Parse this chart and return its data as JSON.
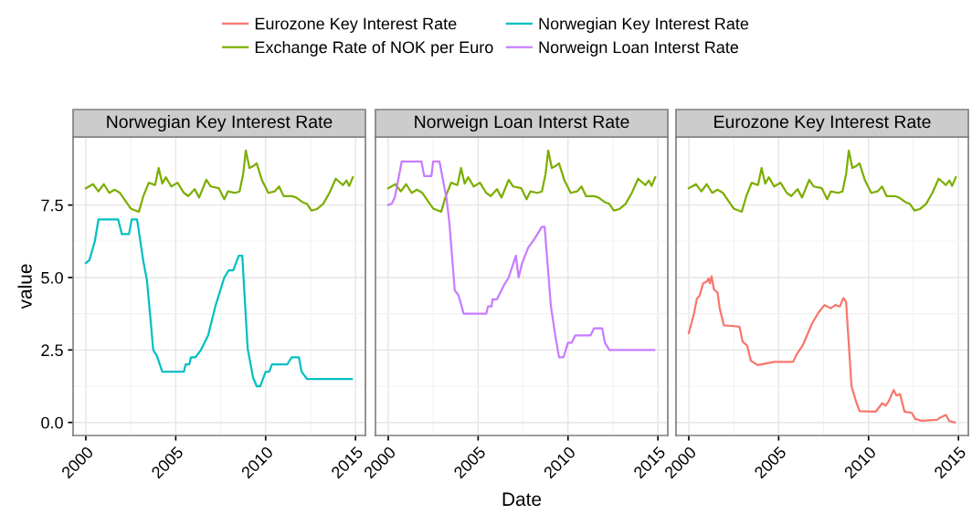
{
  "chart_data": [
    {
      "type": "line",
      "title": "Norwegian Key Interest Rate",
      "ylabel": "value",
      "legend": "top",
      "grid": true,
      "xlim": [
        1999.29,
        2015.55
      ],
      "ylim": [
        -0.45,
        9.85
      ],
      "xticks": [
        2000,
        2005,
        2010,
        2015
      ],
      "yticks": [
        {
          "value": 0,
          "label": "0.0"
        },
        2.5,
        {
          "value": 5,
          "label": "5.0"
        },
        7.5
      ],
      "series": [
        {
          "name": "Exchange Rate of NOK per Euro",
          "color": "#7cae00",
          "x": [
            2000.0,
            2000.4,
            2000.7,
            2001.0,
            2001.3,
            2001.6,
            2001.9,
            2002.25,
            2002.5,
            2002.95,
            2003.2,
            2003.5,
            2003.85,
            2004.05,
            2004.25,
            2004.45,
            2004.75,
            2005.1,
            2005.45,
            2005.7,
            2006.05,
            2006.3,
            2006.7,
            2006.95,
            2007.4,
            2007.7,
            2007.9,
            2008.3,
            2008.55,
            2008.75,
            2008.9,
            2009.1,
            2009.3,
            2009.5,
            2009.8,
            2010.15,
            2010.5,
            2010.75,
            2011.0,
            2011.45,
            2011.7,
            2012.05,
            2012.3,
            2012.55,
            2012.85,
            2013.2,
            2013.55,
            2013.9,
            2014.3,
            2014.5,
            2014.65,
            2014.85
          ],
          "values": [
            8.08,
            8.22,
            7.97,
            8.22,
            7.92,
            8.03,
            7.92,
            7.6,
            7.38,
            7.27,
            7.81,
            8.27,
            8.19,
            8.78,
            8.24,
            8.46,
            8.14,
            8.27,
            7.92,
            7.81,
            8.05,
            7.76,
            8.37,
            8.14,
            8.08,
            7.7,
            7.97,
            7.92,
            7.97,
            8.57,
            9.38,
            8.78,
            8.84,
            8.94,
            8.35,
            7.92,
            7.97,
            8.14,
            7.81,
            7.81,
            7.76,
            7.6,
            7.54,
            7.31,
            7.36,
            7.54,
            7.92,
            8.41,
            8.19,
            8.35,
            8.16,
            8.46
          ]
        },
        {
          "name": "Norwegian Key Interest Rate",
          "color": "#00bfc4",
          "x": [
            2000.0,
            2000.2,
            2000.5,
            2000.7,
            2001.8,
            2002.0,
            2002.4,
            2002.55,
            2002.85,
            2003.2,
            2003.4,
            2003.75,
            2003.95,
            2004.25,
            2005.45,
            2005.55,
            2005.75,
            2005.85,
            2006.1,
            2006.4,
            2006.6,
            2006.8,
            2007.2,
            2007.7,
            2007.95,
            2008.2,
            2008.5,
            2008.7,
            2009.0,
            2009.3,
            2009.5,
            2009.7,
            2010.0,
            2010.2,
            2010.35,
            2011.2,
            2011.45,
            2011.85,
            2012.0,
            2012.3,
            2014.8
          ],
          "values": [
            5.5,
            5.6,
            6.25,
            7.0,
            7.0,
            6.5,
            6.5,
            7.0,
            7.0,
            5.55,
            4.9,
            2.5,
            2.3,
            1.75,
            1.75,
            2.0,
            2.0,
            2.25,
            2.25,
            2.5,
            2.75,
            3.0,
            4.0,
            5.0,
            5.25,
            5.25,
            5.75,
            5.75,
            2.55,
            1.55,
            1.25,
            1.25,
            1.75,
            1.75,
            2.0,
            2.0,
            2.25,
            2.25,
            1.75,
            1.5,
            1.5
          ]
        }
      ]
    },
    {
      "type": "line",
      "title": "Norweign Loan Interst Rate",
      "xlabel": "Date",
      "legend": "top",
      "grid": true,
      "tick_labels": "x",
      "xlim": [
        1999.29,
        2015.55
      ],
      "ylim": [
        -0.45,
        9.85
      ],
      "xticks": [
        2000,
        2005,
        2010,
        2015
      ],
      "yticks": [
        0,
        2.5,
        5,
        7.5
      ],
      "series": [
        {
          "name": "Exchange Rate of NOK per Euro",
          "color": "#7cae00",
          "x": [
            2000.0,
            2000.4,
            2000.7,
            2001.0,
            2001.3,
            2001.6,
            2001.9,
            2002.25,
            2002.5,
            2002.95,
            2003.2,
            2003.5,
            2003.85,
            2004.05,
            2004.25,
            2004.45,
            2004.75,
            2005.1,
            2005.45,
            2005.7,
            2006.05,
            2006.3,
            2006.7,
            2006.95,
            2007.4,
            2007.7,
            2007.9,
            2008.3,
            2008.55,
            2008.75,
            2008.9,
            2009.1,
            2009.3,
            2009.5,
            2009.8,
            2010.15,
            2010.5,
            2010.75,
            2011.0,
            2011.45,
            2011.7,
            2012.05,
            2012.3,
            2012.55,
            2012.85,
            2013.2,
            2013.55,
            2013.9,
            2014.3,
            2014.5,
            2014.65,
            2014.85
          ],
          "values": [
            8.08,
            8.22,
            7.97,
            8.22,
            7.92,
            8.03,
            7.92,
            7.6,
            7.38,
            7.27,
            7.81,
            8.27,
            8.19,
            8.78,
            8.24,
            8.46,
            8.14,
            8.27,
            7.92,
            7.81,
            8.05,
            7.76,
            8.37,
            8.14,
            8.08,
            7.7,
            7.97,
            7.92,
            7.97,
            8.57,
            9.38,
            8.78,
            8.84,
            8.94,
            8.35,
            7.92,
            7.97,
            8.14,
            7.81,
            7.81,
            7.76,
            7.6,
            7.54,
            7.31,
            7.36,
            7.54,
            7.92,
            8.41,
            8.19,
            8.35,
            8.16,
            8.46
          ]
        },
        {
          "name": "Norweign Loan Interst Rate",
          "color": "#c77cff",
          "x": [
            2000.0,
            2000.2,
            2000.37,
            2000.75,
            2001.85,
            2002.0,
            2002.4,
            2002.5,
            2002.85,
            2003.25,
            2003.4,
            2003.7,
            2003.9,
            2004.2,
            2005.45,
            2005.55,
            2005.75,
            2005.8,
            2006.05,
            2006.45,
            2006.7,
            2007.1,
            2007.25,
            2007.45,
            2007.8,
            2008.05,
            2008.3,
            2008.55,
            2008.7,
            2009.05,
            2009.3,
            2009.5,
            2009.75,
            2010.0,
            2010.2,
            2010.4,
            2011.25,
            2011.45,
            2011.9,
            2012.05,
            2012.3,
            2014.8
          ],
          "values": [
            7.5,
            7.55,
            7.77,
            9.0,
            9.0,
            8.5,
            8.5,
            9.0,
            9.0,
            7.7,
            6.9,
            4.55,
            4.4,
            3.75,
            3.75,
            4.0,
            4.0,
            4.25,
            4.25,
            4.75,
            5.0,
            5.75,
            5.0,
            5.5,
            6.05,
            6.25,
            6.5,
            6.75,
            6.75,
            4.0,
            2.97,
            2.25,
            2.25,
            2.75,
            2.75,
            3.0,
            3.0,
            3.25,
            3.25,
            2.75,
            2.5,
            2.5
          ]
        }
      ]
    },
    {
      "type": "line",
      "title": "Eurozone Key Interest Rate",
      "legend": "top",
      "grid": true,
      "tick_labels": "x",
      "xlim": [
        1999.29,
        2015.55
      ],
      "ylim": [
        -0.45,
        9.85
      ],
      "xticks": [
        2000,
        2005,
        2010,
        2015
      ],
      "yticks": [
        0,
        2.5,
        5,
        7.5
      ],
      "series": [
        {
          "name": "Exchange Rate of NOK per Euro",
          "color": "#7cae00",
          "x": [
            2000.0,
            2000.4,
            2000.7,
            2001.0,
            2001.3,
            2001.6,
            2001.9,
            2002.25,
            2002.5,
            2002.95,
            2003.2,
            2003.5,
            2003.85,
            2004.05,
            2004.25,
            2004.45,
            2004.75,
            2005.1,
            2005.45,
            2005.7,
            2006.05,
            2006.3,
            2006.7,
            2006.95,
            2007.4,
            2007.7,
            2007.9,
            2008.3,
            2008.55,
            2008.75,
            2008.9,
            2009.1,
            2009.3,
            2009.5,
            2009.8,
            2010.15,
            2010.5,
            2010.75,
            2011.0,
            2011.45,
            2011.7,
            2012.05,
            2012.3,
            2012.55,
            2012.85,
            2013.2,
            2013.55,
            2013.9,
            2014.3,
            2014.5,
            2014.65,
            2014.85
          ],
          "values": [
            8.08,
            8.22,
            7.97,
            8.22,
            7.92,
            8.03,
            7.92,
            7.6,
            7.38,
            7.27,
            7.81,
            8.27,
            8.19,
            8.78,
            8.24,
            8.46,
            8.14,
            8.27,
            7.92,
            7.81,
            8.05,
            7.76,
            8.37,
            8.14,
            8.08,
            7.7,
            7.97,
            7.92,
            7.97,
            8.57,
            9.38,
            8.78,
            8.84,
            8.94,
            8.35,
            7.92,
            7.97,
            8.14,
            7.81,
            7.81,
            7.76,
            7.6,
            7.54,
            7.31,
            7.36,
            7.54,
            7.92,
            8.41,
            8.19,
            8.35,
            8.16,
            8.46
          ]
        },
        {
          "name": "Eurozone Key Interest Rate",
          "color": "#f8766d",
          "x": [
            2000.0,
            2000.3,
            2000.45,
            2000.6,
            2000.8,
            2001.0,
            2001.1,
            2001.18,
            2001.27,
            2001.4,
            2001.6,
            2001.72,
            2001.95,
            2002.4,
            2002.82,
            2003.0,
            2003.25,
            2003.45,
            2003.83,
            2004.75,
            2005.8,
            2006.0,
            2006.35,
            2006.85,
            2007.2,
            2007.55,
            2007.9,
            2008.15,
            2008.4,
            2008.6,
            2008.75,
            2009.05,
            2009.3,
            2009.5,
            2010.4,
            2010.75,
            2010.95,
            2011.1,
            2011.4,
            2011.55,
            2011.75,
            2012.0,
            2012.4,
            2012.6,
            2012.95,
            2013.8,
            2014.05,
            2014.3,
            2014.5,
            2014.8
          ],
          "values": [
            3.08,
            3.78,
            4.27,
            4.37,
            4.8,
            4.86,
            4.97,
            4.8,
            5.04,
            4.59,
            4.48,
            3.94,
            3.35,
            3.33,
            3.3,
            2.78,
            2.65,
            2.13,
            1.98,
            2.09,
            2.09,
            2.35,
            2.67,
            3.41,
            3.78,
            4.05,
            3.94,
            4.05,
            4.0,
            4.29,
            4.16,
            1.25,
            0.73,
            0.39,
            0.37,
            0.66,
            0.58,
            0.71,
            1.12,
            0.93,
            0.98,
            0.37,
            0.33,
            0.12,
            0.06,
            0.09,
            0.19,
            0.26,
            0.04,
            0.0
          ]
        }
      ]
    }
  ]
}
